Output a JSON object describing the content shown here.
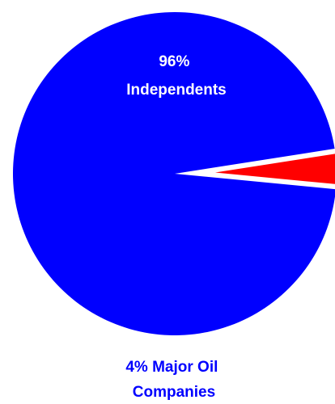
{
  "chart_data": {
    "type": "pie",
    "title": "",
    "legend": "none",
    "slices": [
      {
        "label_lines": [
          "96%",
          "Independents"
        ],
        "value": 96,
        "color": "#0000ff",
        "label_color": "#ffffff",
        "exploded": false
      },
      {
        "label_lines": [
          "4% Major Oil",
          "Companies"
        ],
        "value": 4,
        "color": "#ff0000",
        "label_color": "#0000ff",
        "exploded": true
      }
    ]
  }
}
